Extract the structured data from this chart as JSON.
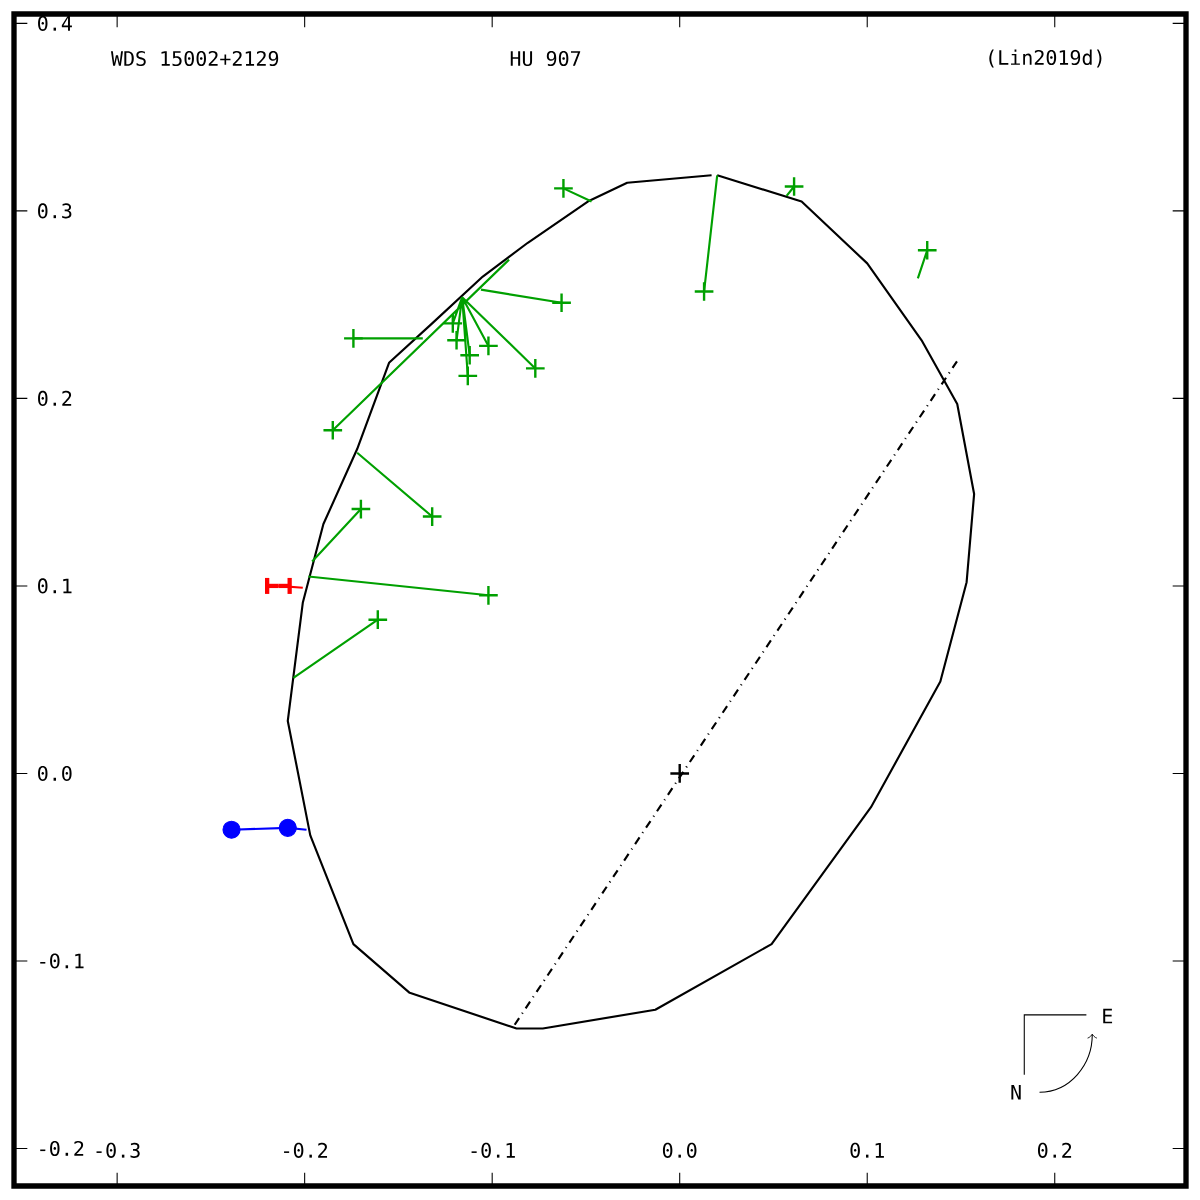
{
  "chart_data": {
    "type": "scatter",
    "annotations": [
      "WDS 15002+2129",
      "HU  907",
      "(Lin2019d)",
      "E",
      "N"
    ],
    "xlim": [
      -0.355,
      0.27
    ],
    "ylim": [
      -0.22,
      0.405
    ],
    "xticks": [
      -0.3,
      -0.2,
      -0.1,
      {
        "value": 0,
        "label": "0.0"
      },
      0.1,
      0.2
    ],
    "yticks": [
      -0.2,
      -0.1,
      {
        "value": 0,
        "label": "0.0"
      },
      0.1,
      0.2,
      0.3,
      0.4
    ],
    "series": [
      {
        "type": "line",
        "color": "#000000",
        "marker": "none",
        "line_style": "solid",
        "x": [
          0.02,
          0.065,
          0.1,
          0.129,
          0.148,
          0.157,
          0.153,
          0.139,
          0.102,
          0.049,
          -0.013,
          -0.073,
          -0.087,
          -0.144,
          -0.174,
          -0.197,
          -0.209,
          -0.201,
          -0.19,
          -0.172,
          -0.155,
          -0.132,
          -0.105,
          -0.081,
          -0.049,
          -0.028,
          0.017
        ],
        "values": [
          0.319,
          0.305,
          0.272,
          0.231,
          0.197,
          0.149,
          0.102,
          0.049,
          -0.018,
          -0.091,
          -0.126,
          -0.136,
          -0.136,
          -0.117,
          -0.091,
          -0.033,
          0.028,
          0.091,
          0.133,
          0.173,
          0.219,
          0.24,
          0.265,
          0.283,
          0.305,
          0.315,
          0.319
        ]
      },
      {
        "type": "line",
        "color": "#000000",
        "marker": "none",
        "line_style": "dashdot",
        "x": [
          -0.088,
          0.148
        ],
        "values": [
          -0.134,
          0.22
        ]
      },
      {
        "type": "scatter",
        "color": "#000000",
        "marker": "cross",
        "x": [
          0.0
        ],
        "values": [
          0.0
        ]
      },
      {
        "type": "line",
        "color": "#00a000",
        "marker": "none",
        "line_style": "solid",
        "x": [
          -0.062,
          -0.047,
          null,
          0.013,
          0.02,
          null,
          0.061,
          0.057,
          null,
          0.132,
          0.127,
          null,
          -0.063,
          -0.106,
          null,
          -0.174,
          -0.137,
          null,
          -0.121,
          -0.116,
          null,
          -0.119,
          -0.116,
          null,
          -0.112,
          -0.116,
          null,
          -0.102,
          -0.116,
          null,
          -0.113,
          -0.116,
          null,
          -0.077,
          -0.116,
          null,
          -0.185,
          -0.091,
          null,
          -0.132,
          -0.172,
          null,
          -0.17,
          -0.196,
          null,
          -0.102,
          -0.198,
          null,
          -0.161,
          -0.206
        ],
        "values": [
          0.312,
          0.305,
          null,
          0.257,
          0.319,
          null,
          0.313,
          0.308,
          null,
          0.279,
          0.264,
          null,
          0.251,
          0.258,
          null,
          0.232,
          0.232,
          null,
          0.24,
          0.254,
          null,
          0.231,
          0.254,
          null,
          0.223,
          0.254,
          null,
          0.228,
          0.254,
          null,
          0.212,
          0.254,
          null,
          0.216,
          0.254,
          null,
          0.183,
          0.274,
          null,
          0.137,
          0.171,
          null,
          0.141,
          0.113,
          null,
          0.095,
          0.105,
          null,
          0.082,
          0.051
        ]
      },
      {
        "type": "scatter",
        "color": "#00a000",
        "marker": "cross",
        "x": [
          -0.062,
          0.013,
          0.061,
          0.132,
          -0.063,
          -0.174,
          -0.121,
          -0.119,
          -0.112,
          -0.102,
          -0.113,
          -0.077,
          -0.185,
          -0.132,
          -0.17,
          -0.102,
          -0.161
        ],
        "values": [
          0.312,
          0.257,
          0.313,
          0.279,
          0.251,
          0.232,
          0.24,
          0.231,
          0.223,
          0.228,
          0.212,
          0.216,
          0.183,
          0.137,
          0.141,
          0.095,
          0.082
        ]
      },
      {
        "type": "line",
        "color": "#ff0000",
        "marker": "none",
        "line_style": "solid",
        "x": [
          -0.214,
          -0.201
        ],
        "values": [
          0.1,
          0.099
        ],
        "xerrors": [
          0.006,
          null
        ]
      },
      {
        "type": "line",
        "color": "#0000ff",
        "marker": "none",
        "line_style": "solid",
        "x": [
          -0.239,
          -0.209,
          -0.199
        ],
        "values": [
          -0.03,
          -0.029,
          -0.03
        ]
      },
      {
        "type": "scatter",
        "color": "#0000ff",
        "marker": "circle",
        "x": [
          -0.239,
          -0.209
        ],
        "values": [
          -0.03,
          -0.029
        ]
      }
    ]
  }
}
